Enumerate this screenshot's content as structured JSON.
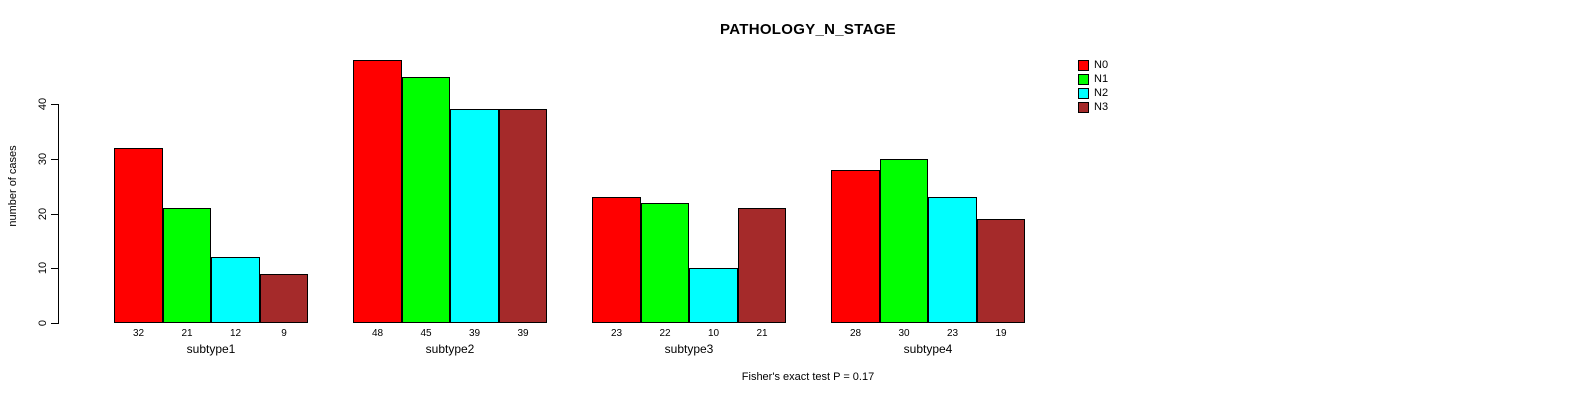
{
  "chart_data": {
    "type": "bar",
    "title": "PATHOLOGY_N_STAGE",
    "ylabel": "number of cases",
    "xlabel": "",
    "categories": [
      "subtype1",
      "subtype2",
      "subtype3",
      "subtype4"
    ],
    "series": [
      {
        "name": "N0",
        "color": "#FF0000",
        "values": [
          32,
          48,
          23,
          28
        ]
      },
      {
        "name": "N1",
        "color": "#00FF00",
        "values": [
          21,
          45,
          22,
          30
        ]
      },
      {
        "name": "N2",
        "color": "#00FFFF",
        "values": [
          12,
          39,
          10,
          23
        ]
      },
      {
        "name": "N3",
        "color": "#A52A2A",
        "values": [
          9,
          39,
          21,
          19
        ]
      }
    ],
    "yticks": [
      0,
      10,
      20,
      30,
      40
    ],
    "ylim": [
      0,
      48
    ],
    "grid": false,
    "legend_position": "top-right",
    "bar_value_labels": true,
    "annotation": "Fisher's exact test P = 0.17"
  }
}
